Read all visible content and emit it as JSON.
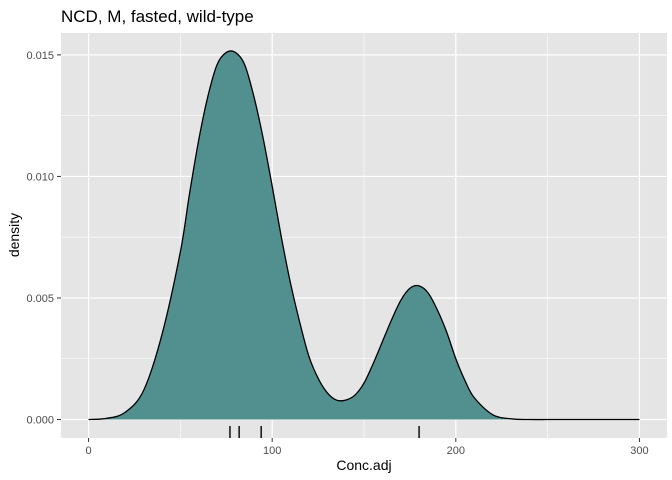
{
  "chart_data": {
    "type": "area",
    "title": "NCD, M, fasted, wild-type",
    "xlabel": "Conc.adj",
    "ylabel": "density",
    "xlim": [
      -15,
      315
    ],
    "ylim": [
      -0.00076,
      0.0159
    ],
    "x_ticks": [
      0,
      100,
      200,
      300
    ],
    "y_ticks": [
      0.0,
      0.005,
      0.01,
      0.015
    ],
    "x_tick_labels": [
      "0",
      "100",
      "200",
      "300"
    ],
    "y_tick_labels": [
      "0.000",
      "0.005",
      "0.010",
      "0.015"
    ],
    "grid": true,
    "series": [
      {
        "x": [
          0,
          10,
          20,
          30,
          40,
          50,
          55,
          60,
          65,
          70,
          75,
          80,
          85,
          90,
          95,
          100,
          105,
          110,
          115,
          120,
          125,
          130,
          135,
          140,
          145,
          150,
          155,
          160,
          165,
          170,
          175,
          180,
          185,
          190,
          195,
          200,
          205,
          210,
          220,
          230,
          240,
          250,
          260,
          270,
          280,
          290,
          300
        ],
        "y": [
          0.0,
          5e-05,
          0.0003,
          0.0012,
          0.0035,
          0.0069,
          0.0093,
          0.0115,
          0.0133,
          0.0146,
          0.0151,
          0.0151,
          0.0146,
          0.0133,
          0.0116,
          0.0096,
          0.0075,
          0.0056,
          0.004,
          0.0026,
          0.0017,
          0.0011,
          0.0008,
          0.0008,
          0.001,
          0.0015,
          0.0023,
          0.0032,
          0.0041,
          0.0049,
          0.0054,
          0.0055,
          0.0052,
          0.0045,
          0.0036,
          0.0025,
          0.0016,
          0.0009,
          0.0002,
          3e-05,
          0.0,
          0.0,
          0.0,
          0.0,
          0.0,
          0.0,
          0.0
        ]
      }
    ],
    "rug": [
      77,
      82,
      94,
      180
    ],
    "colors": {
      "fill": "#528F8F",
      "line": "#000000",
      "panel": "#E5E5E5",
      "grid": "#FFFFFF",
      "tick_label": "#4D4D4D"
    }
  }
}
